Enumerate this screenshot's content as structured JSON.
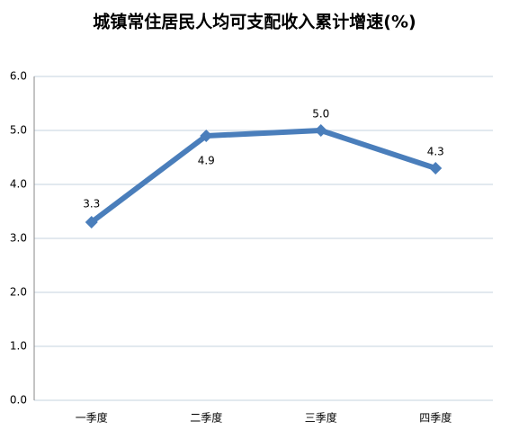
{
  "chart_data": {
    "type": "line",
    "title": "城镇常住居民人均可支配收入累计增速(%)",
    "categories": [
      "一季度",
      "二季度",
      "三季度",
      "四季度"
    ],
    "values": [
      3.3,
      4.9,
      5.0,
      4.3
    ],
    "value_labels": [
      "3.3",
      "4.9",
      "5.0",
      "4.3"
    ],
    "color": "#4a7ebb",
    "ylim": [
      0,
      6
    ],
    "yticks": [
      {
        "value": 0,
        "label": "0.0"
      },
      {
        "value": 1,
        "label": "1.0"
      },
      {
        "value": 2,
        "label": "2.0"
      },
      {
        "value": 3,
        "label": "3.0"
      },
      {
        "value": 4,
        "label": "4.0"
      },
      {
        "value": 5,
        "label": "5.0"
      },
      {
        "value": 6,
        "label": "6.0"
      }
    ],
    "grid": true
  }
}
